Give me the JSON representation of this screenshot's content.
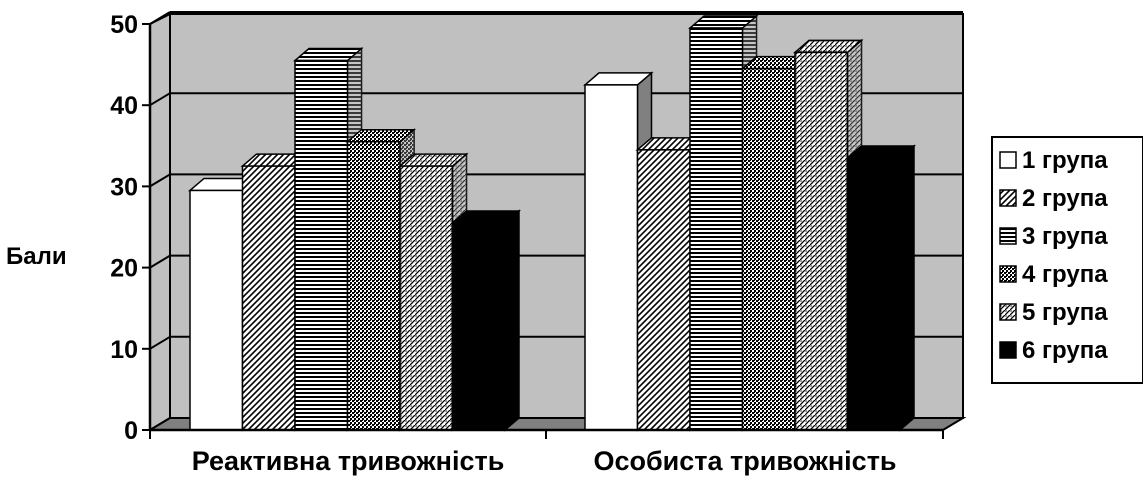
{
  "chart_data": {
    "type": "bar",
    "title": "",
    "xlabel": "",
    "ylabel": "Бали",
    "ylim": [
      0,
      50
    ],
    "yticks": [
      0,
      10,
      20,
      30,
      40,
      50
    ],
    "categories": [
      "Реактивна тривожність",
      "Особиста тривожність"
    ],
    "series": [
      {
        "name": "1 група",
        "values": [
          29.5,
          42.5
        ]
      },
      {
        "name": "2 група",
        "values": [
          32.5,
          34.5
        ]
      },
      {
        "name": "3 група",
        "values": [
          45.5,
          49.5
        ]
      },
      {
        "name": "4 група",
        "values": [
          35.5,
          44.5
        ]
      },
      {
        "name": "5 група",
        "values": [
          32.5,
          46.5
        ]
      },
      {
        "name": "6 група",
        "values": [
          25.5,
          33.5
        ]
      }
    ],
    "grid": true,
    "legend_position": "right",
    "style": "3d-column",
    "colors": {
      "wall": "#c0c0c0",
      "floor": "#808080",
      "side_shade": "#808080",
      "bar_stroke": "#000000"
    },
    "series_fills": [
      "white",
      "diagonal",
      "horizontal",
      "checker",
      "dots-diagonal",
      "black"
    ]
  }
}
